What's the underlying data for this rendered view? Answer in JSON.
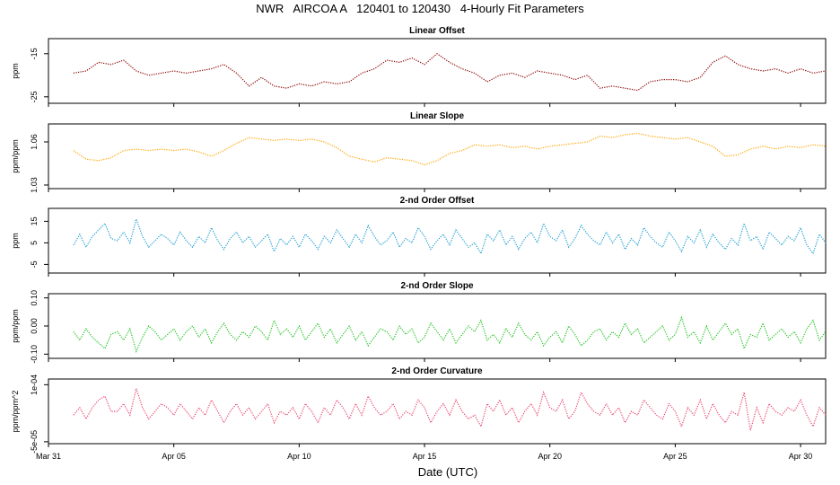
{
  "title": "NWR   AIRCOA A   120401 to 120430   4-Hourly Fit Parameters",
  "xlabel": "Date (UTC)",
  "x_axis": {
    "unit": "day of 2012 (Apr 1 = 1)",
    "range": [
      0.0,
      31.0
    ],
    "ticks": [
      {
        "value": 0,
        "label": "Mar 31"
      },
      {
        "value": 5,
        "label": "Apr 05"
      },
      {
        "value": 10,
        "label": "Apr 10"
      },
      {
        "value": 15,
        "label": "Apr 15"
      },
      {
        "value": 20,
        "label": "Apr 20"
      },
      {
        "value": 25,
        "label": "Apr 25"
      },
      {
        "value": 30,
        "label": "Apr 30"
      }
    ]
  },
  "chart_data": [
    {
      "type": "line",
      "title": "Linear Offset",
      "ylabel": "ppm",
      "ylim": [
        -26.5,
        -11.5
      ],
      "yticks": [
        {
          "value": -15,
          "label": "-15"
        },
        {
          "value": -25,
          "label": "-25"
        }
      ],
      "color": "#8b0000",
      "style": "dotted",
      "x_start": 1.0,
      "x_step": 0.5,
      "values": [
        -19.5,
        -19.0,
        -17.0,
        -17.5,
        -16.5,
        -19.0,
        -20.0,
        -19.5,
        -19.0,
        -19.5,
        -19.0,
        -18.5,
        -17.5,
        -19.5,
        -22.5,
        -20.5,
        -22.5,
        -23.0,
        -22.0,
        -22.5,
        -21.5,
        -22.0,
        -21.5,
        -19.5,
        -18.5,
        -16.5,
        -17.0,
        -16.0,
        -17.5,
        -15.0,
        -17.0,
        -18.5,
        -19.5,
        -21.5,
        -20.0,
        -19.5,
        -20.5,
        -19.0,
        -19.5,
        -20.0,
        -21.0,
        -20.0,
        -23.0,
        -22.5,
        -23.0,
        -23.5,
        -21.5,
        -21.0,
        -21.0,
        -21.5,
        -20.5,
        -17.0,
        -15.5,
        -17.5,
        -18.5,
        -19.0,
        -18.5,
        -19.5,
        -18.5,
        -19.5,
        -19.0
      ]
    },
    {
      "type": "line",
      "title": "Linear Slope",
      "ylabel": "ppm/ppm",
      "ylim": [
        1.0275,
        1.0725
      ],
      "yticks": [
        {
          "value": 1.06,
          "label": "1.06"
        },
        {
          "value": 1.03,
          "label": "1.03"
        }
      ],
      "color": "#ffa500",
      "style": "dotted",
      "x_start": 1.0,
      "x_step": 0.5,
      "values": [
        1.054,
        1.048,
        1.047,
        1.049,
        1.054,
        1.055,
        1.054,
        1.055,
        1.054,
        1.055,
        1.053,
        1.05,
        1.054,
        1.059,
        1.063,
        1.062,
        1.061,
        1.062,
        1.061,
        1.062,
        1.06,
        1.056,
        1.05,
        1.048,
        1.046,
        1.049,
        1.048,
        1.047,
        1.044,
        1.047,
        1.052,
        1.054,
        1.058,
        1.057,
        1.058,
        1.056,
        1.057,
        1.055,
        1.057,
        1.058,
        1.059,
        1.06,
        1.064,
        1.063,
        1.065,
        1.066,
        1.064,
        1.063,
        1.062,
        1.063,
        1.06,
        1.057,
        1.05,
        1.051,
        1.055,
        1.057,
        1.055,
        1.057,
        1.056,
        1.058,
        1.057
      ]
    },
    {
      "type": "line",
      "title": "2-nd Order Offset",
      "ylabel": "ppm",
      "ylim": [
        -9,
        21
      ],
      "yticks": [
        {
          "value": 15,
          "label": "15"
        },
        {
          "value": 5,
          "label": "5"
        },
        {
          "value": -5,
          "label": "-5"
        }
      ],
      "color": "#1e9ed2",
      "style": "dotted",
      "x_start": 1.0,
      "x_step": 0.25,
      "values": [
        4,
        9,
        3,
        8,
        11,
        14,
        7,
        6,
        10,
        5,
        16,
        8,
        3,
        6,
        9,
        7,
        4,
        10,
        6,
        3,
        8,
        5,
        12,
        6,
        2,
        7,
        10,
        5,
        8,
        3,
        6,
        9,
        1,
        7,
        4,
        8,
        3,
        9,
        6,
        2,
        8,
        5,
        11,
        7,
        3,
        9,
        5,
        13,
        8,
        4,
        6,
        10,
        3,
        7,
        5,
        12,
        8,
        2,
        6,
        9,
        4,
        11,
        7,
        3,
        5,
        0,
        9,
        6,
        11,
        4,
        8,
        2,
        7,
        10,
        5,
        14,
        8,
        6,
        11,
        3,
        7,
        13,
        9,
        6,
        4,
        10,
        5,
        9,
        2,
        7,
        4,
        12,
        8,
        5,
        3,
        10,
        6,
        1,
        8,
        5,
        11,
        3,
        9,
        5,
        2,
        7,
        4,
        14,
        6,
        8,
        2,
        10,
        7,
        4,
        8,
        6,
        12,
        4,
        0,
        9,
        5
      ]
    },
    {
      "type": "line",
      "title": "2-nd Order Slope",
      "ylabel": "ppm/ppm",
      "ylim": [
        -0.115,
        0.115
      ],
      "yticks": [
        {
          "value": 0.1,
          "label": "0.10"
        },
        {
          "value": 0.0,
          "label": "0.00"
        },
        {
          "value": -0.1,
          "label": "-0.10"
        }
      ],
      "color": "#1fc41f",
      "style": "dotted",
      "x_start": 1.0,
      "x_step": 0.25,
      "values": [
        -0.02,
        -0.05,
        -0.01,
        -0.04,
        -0.06,
        -0.08,
        -0.03,
        -0.02,
        -0.05,
        -0.01,
        -0.09,
        -0.04,
        0.0,
        -0.02,
        -0.05,
        -0.03,
        -0.01,
        -0.05,
        -0.02,
        0.0,
        -0.04,
        -0.01,
        -0.06,
        -0.02,
        0.01,
        -0.03,
        -0.05,
        -0.02,
        -0.04,
        0.0,
        -0.02,
        -0.05,
        0.02,
        -0.03,
        -0.01,
        -0.04,
        0.0,
        -0.05,
        -0.02,
        0.01,
        -0.04,
        -0.01,
        -0.06,
        -0.03,
        0.0,
        -0.05,
        -0.02,
        -0.07,
        -0.04,
        -0.01,
        -0.02,
        -0.05,
        0.0,
        -0.03,
        -0.01,
        -0.06,
        -0.04,
        0.01,
        -0.02,
        -0.05,
        -0.01,
        -0.06,
        -0.03,
        0.0,
        -0.02,
        0.02,
        -0.05,
        -0.03,
        -0.06,
        -0.01,
        -0.04,
        0.01,
        -0.03,
        -0.05,
        -0.02,
        -0.07,
        -0.04,
        -0.02,
        -0.06,
        0.0,
        -0.03,
        -0.07,
        -0.05,
        -0.02,
        -0.01,
        -0.05,
        -0.02,
        -0.04,
        0.01,
        -0.03,
        -0.01,
        -0.06,
        -0.04,
        -0.02,
        0.0,
        -0.05,
        -0.03,
        0.03,
        -0.04,
        -0.02,
        -0.06,
        0.0,
        -0.05,
        -0.02,
        0.01,
        -0.03,
        -0.01,
        -0.08,
        -0.03,
        -0.04,
        0.01,
        -0.05,
        -0.03,
        -0.01,
        -0.04,
        -0.02,
        -0.06,
        -0.01,
        0.02,
        -0.05,
        -0.02
      ]
    },
    {
      "type": "line",
      "title": "2-nd Order Curvature",
      "ylabel": "ppm/ppm^2",
      "ylim": [
        -5.5e-05,
        0.000115
      ],
      "yticks": [
        {
          "value": 0.0001,
          "label": "1e-04"
        },
        {
          "value": -5e-05,
          "label": "-5e-05"
        }
      ],
      "color": "#e8456f",
      "style": "dotted",
      "x_start": 1.0,
      "x_step": 0.25,
      "values": [
        2e-05,
        4e-05,
        1e-05,
        4e-05,
        6e-05,
        7e-05,
        3e-05,
        3e-05,
        5e-05,
        2e-05,
        9e-05,
        4e-05,
        1e-05,
        3e-05,
        5e-05,
        4e-05,
        2e-05,
        5e-05,
        3e-05,
        1e-05,
        4e-05,
        2e-05,
        6e-05,
        3e-05,
        0.0,
        3e-05,
        5e-05,
        2e-05,
        4e-05,
        1e-05,
        3e-05,
        5e-05,
        0.0,
        3e-05,
        2e-05,
        4e-05,
        1e-05,
        5e-05,
        3e-05,
        0.0,
        4e-05,
        2e-05,
        6e-05,
        4e-05,
        1e-05,
        5e-05,
        2e-05,
        7e-05,
        4e-05,
        2e-05,
        3e-05,
        5e-05,
        1e-05,
        3e-05,
        2e-05,
        6e-05,
        4e-05,
        0.0,
        3e-05,
        5e-05,
        2e-05,
        6e-05,
        3e-05,
        1e-05,
        2e-05,
        -1e-05,
        5e-05,
        3e-05,
        6e-05,
        2e-05,
        4e-05,
        0.0,
        3e-05,
        5e-05,
        2e-05,
        8e-05,
        4e-05,
        3e-05,
        6e-05,
        1e-05,
        3e-05,
        8e-05,
        5e-05,
        3e-05,
        2e-05,
        5e-05,
        2e-05,
        4e-05,
        0.0,
        3e-05,
        2e-05,
        6e-05,
        4e-05,
        2e-05,
        1e-05,
        5e-05,
        3e-05,
        -1e-05,
        4e-05,
        2e-05,
        6e-05,
        1e-05,
        5e-05,
        2e-05,
        0.0,
        3e-05,
        2e-05,
        8e-05,
        -2e-05,
        4e-05,
        0.0,
        5e-05,
        3e-05,
        2e-05,
        4e-05,
        3e-05,
        6e-05,
        2e-05,
        -1e-05,
        4e-05,
        2e-05
      ]
    }
  ]
}
